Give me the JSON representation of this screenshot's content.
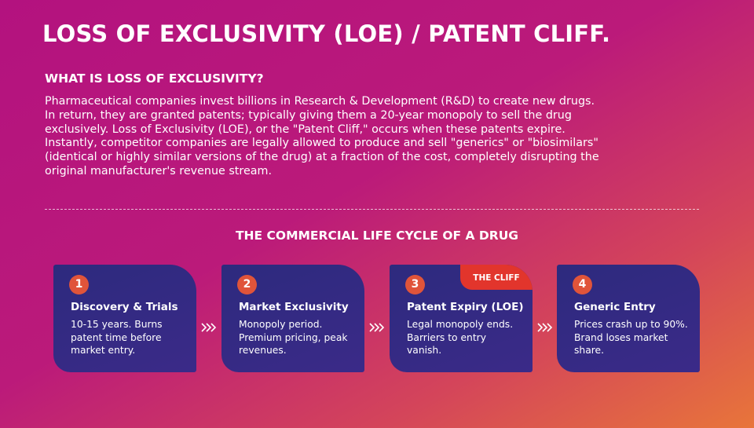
{
  "header": {
    "title": "LOSS OF EXCLUSIVITY (LOE) / PATENT CLIFF."
  },
  "intro": {
    "heading": "WHAT IS LOSS OF EXCLUSIVITY?",
    "lines": [
      "Pharmaceutical companies invest billions in Research & Development (R&D) to create new drugs.",
      "In return, they are granted patents; typically giving them a 20-year monopoly to sell the drug",
      "exclusively. Loss of Exclusivity (LOE), or the \"Patent Cliff,\" occurs when these patents expire.",
      "Instantly, competitor companies are legally allowed to produce and sell \"generics\" or \"biosimilars\"",
      "(identical or highly similar versions of the drug) at a fraction of the cost, completely disrupting the",
      "original manufacturer's revenue stream."
    ]
  },
  "lifecycle": {
    "heading": "THE COMMERCIAL LIFE CYCLE OF A DRUG",
    "badge": "THE CLIFF",
    "cards": [
      {
        "number": "1",
        "title": "Discovery & Trials",
        "lines": [
          "10-15 years. Burns",
          "patent time before",
          "market entry."
        ]
      },
      {
        "number": "2",
        "title": "Market Exclusivity",
        "lines": [
          "Monopoly period.",
          "Premium pricing, peak",
          "revenues."
        ]
      },
      {
        "number": "3",
        "title": "Patent Expiry (LOE)",
        "lines": [
          "Legal monopoly ends.",
          "Barriers to entry",
          "vanish."
        ]
      },
      {
        "number": "4",
        "title": "Generic Entry",
        "lines": [
          "Prices crash up to 90%.",
          "Brand loses market",
          "share."
        ]
      }
    ]
  }
}
